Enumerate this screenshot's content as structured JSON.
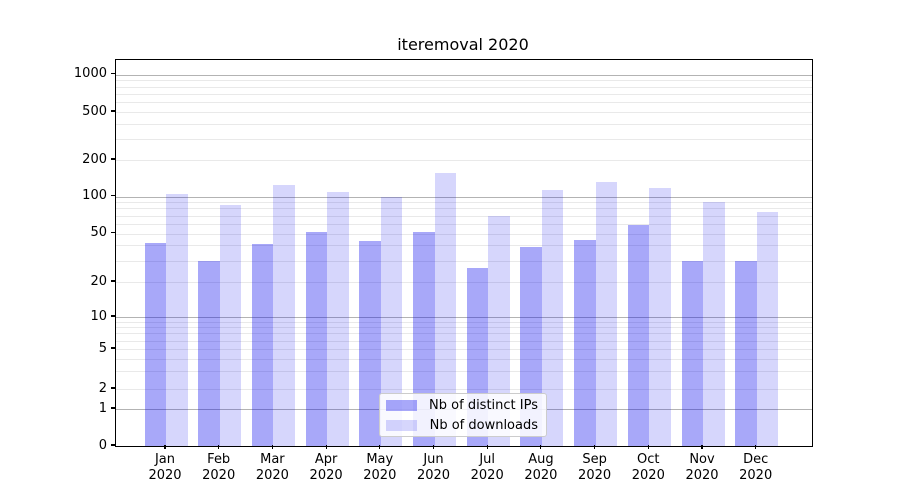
{
  "chart_data": {
    "type": "bar",
    "title": "iteremoval 2020",
    "categories": [
      "Jan",
      "Feb",
      "Mar",
      "Apr",
      "May",
      "Jun",
      "Jul",
      "Aug",
      "Sep",
      "Oct",
      "Nov",
      "Dec"
    ],
    "year_label": "2020",
    "series": [
      {
        "name": "Nb of distinct IPs",
        "color": "rgba(0,0,238,0.34)",
        "color_hex": "#a9a9f9",
        "values": [
          42,
          30,
          41,
          51,
          43,
          51,
          26,
          39,
          44,
          59,
          30,
          30
        ]
      },
      {
        "name": "Nb of downloads",
        "color": "rgba(0,0,238,0.16)",
        "color_hex": "#d8d8fb",
        "values": [
          105,
          85,
          125,
          108,
          100,
          155,
          70,
          113,
          132,
          118,
          90,
          75
        ]
      }
    ],
    "xlabel": "",
    "ylabel": "",
    "y_ticks": [
      0,
      1,
      2,
      5,
      10,
      20,
      50,
      100,
      200,
      500,
      1000
    ],
    "y_scale": "symlog",
    "ylim": [
      0,
      1300
    ],
    "grid": "on",
    "grid_major_color": "#b3b3b3",
    "grid_minor_color": "#e9e9e9",
    "legend_position": "lower-center-inside"
  }
}
